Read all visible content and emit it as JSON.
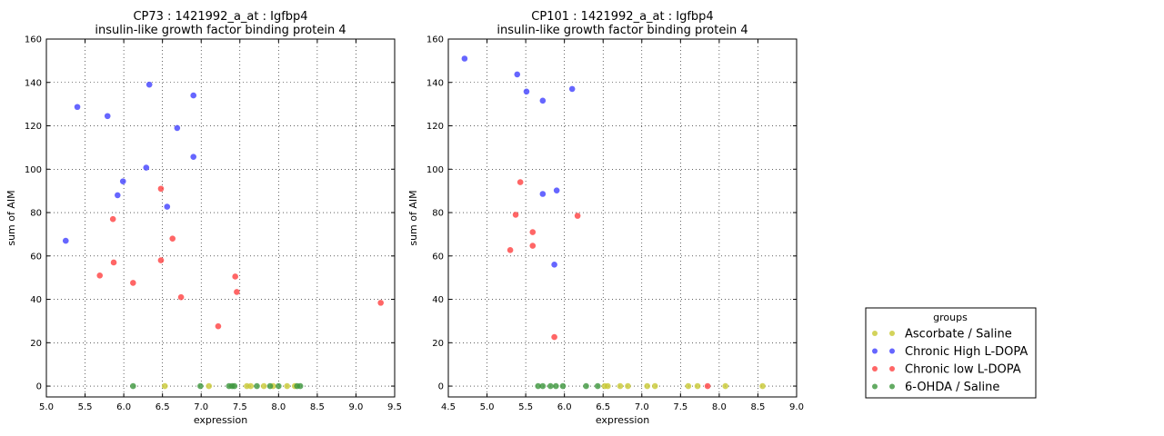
{
  "chart_data": [
    {
      "type": "scatter",
      "title": "CP73 : 1421992_a_at : Igfbp4",
      "subtitle": "insulin-like growth factor binding protein 4",
      "xlabel": "expression",
      "ylabel": "sum of AIM",
      "xlim": [
        5.0,
        9.5
      ],
      "ylim": [
        -5,
        160
      ],
      "xticks": [
        "5.0",
        "5.5",
        "6.0",
        "6.5",
        "7.0",
        "7.5",
        "8.0",
        "8.5",
        "9.0",
        "9.5"
      ],
      "yticks": [
        "0",
        "20",
        "40",
        "60",
        "80",
        "100",
        "120",
        "140",
        "160"
      ],
      "grid": true,
      "series": [
        {
          "name": "Ascorbate / Saline",
          "color": "#c8c832",
          "points": [
            [
              6.53,
              0
            ],
            [
              7.1,
              0
            ],
            [
              7.59,
              0
            ],
            [
              7.64,
              0
            ],
            [
              7.81,
              0
            ],
            [
              7.93,
              0
            ],
            [
              8.11,
              0
            ],
            [
              8.21,
              0
            ]
          ]
        },
        {
          "name": "Chronic High L-DOPA",
          "color": "#4040ff",
          "points": [
            [
              5.4,
              128.7
            ],
            [
              5.79,
              124.5
            ],
            [
              6.33,
              139
            ],
            [
              6.9,
              134
            ],
            [
              6.69,
              119
            ],
            [
              6.29,
              100.7
            ],
            [
              5.99,
              94.4
            ],
            [
              5.92,
              88
            ],
            [
              6.56,
              82.7
            ],
            [
              6.9,
              105.7
            ],
            [
              5.25,
              67
            ]
          ]
        },
        {
          "name": "Chronic low L-DOPA",
          "color": "#ff4040",
          "points": [
            [
              6.48,
              91
            ],
            [
              5.86,
              77
            ],
            [
              6.63,
              68
            ],
            [
              5.69,
              51
            ],
            [
              5.87,
              57
            ],
            [
              6.48,
              58
            ],
            [
              6.12,
              47.6
            ],
            [
              6.74,
              41
            ],
            [
              7.44,
              50.5
            ],
            [
              7.46,
              43.4
            ],
            [
              7.22,
              27.6
            ],
            [
              9.32,
              38.4
            ]
          ]
        },
        {
          "name": "6-OHDA / Saline",
          "color": "#3c963c",
          "points": [
            [
              6.12,
              0
            ],
            [
              6.99,
              0
            ],
            [
              7.36,
              0
            ],
            [
              7.4,
              0
            ],
            [
              7.43,
              0
            ],
            [
              7.72,
              0
            ],
            [
              7.89,
              0
            ],
            [
              8.0,
              0
            ],
            [
              8.24,
              0
            ],
            [
              8.28,
              0
            ]
          ]
        }
      ]
    },
    {
      "type": "scatter",
      "title": "CP101 : 1421992_a_at : Igfbp4",
      "subtitle": "insulin-like growth factor binding protein 4",
      "xlabel": "expression",
      "ylabel": "sum of AIM",
      "xlim": [
        4.5,
        9.0
      ],
      "ylim": [
        -5,
        160
      ],
      "xticks": [
        "4.5",
        "5.0",
        "5.5",
        "6.0",
        "6.5",
        "7.0",
        "7.5",
        "8.0",
        "8.5",
        "9.0"
      ],
      "yticks": [
        "0",
        "20",
        "40",
        "60",
        "80",
        "100",
        "120",
        "140",
        "160"
      ],
      "grid": true,
      "series": [
        {
          "name": "Ascorbate / Saline",
          "color": "#c8c832",
          "points": [
            [
              6.52,
              0
            ],
            [
              6.56,
              0
            ],
            [
              6.72,
              0
            ],
            [
              6.82,
              0
            ],
            [
              7.07,
              0
            ],
            [
              7.17,
              0
            ],
            [
              7.6,
              0
            ],
            [
              7.72,
              0
            ],
            [
              8.08,
              0
            ],
            [
              8.56,
              0
            ]
          ]
        },
        {
          "name": "Chronic High L-DOPA",
          "color": "#4040ff",
          "points": [
            [
              4.71,
              151
            ],
            [
              5.39,
              143.7
            ],
            [
              5.51,
              135.8
            ],
            [
              5.72,
              131.6
            ],
            [
              6.1,
              137
            ],
            [
              5.72,
              88.6
            ],
            [
              5.9,
              90.2
            ],
            [
              5.87,
              56
            ]
          ]
        },
        {
          "name": "Chronic low L-DOPA",
          "color": "#ff4040",
          "points": [
            [
              5.43,
              94
            ],
            [
              5.37,
              79
            ],
            [
              6.17,
              78.5
            ],
            [
              5.59,
              71
            ],
            [
              5.59,
              64.7
            ],
            [
              5.3,
              62.7
            ],
            [
              5.87,
              22.6
            ],
            [
              7.85,
              0
            ]
          ]
        },
        {
          "name": "6-OHDA / Saline",
          "color": "#3c963c",
          "points": [
            [
              5.66,
              0
            ],
            [
              5.72,
              0
            ],
            [
              5.82,
              0
            ],
            [
              5.89,
              0
            ],
            [
              5.98,
              0
            ],
            [
              6.28,
              0
            ],
            [
              6.43,
              0
            ]
          ]
        }
      ]
    }
  ],
  "legend": {
    "title": "groups",
    "placement": "bottom-right",
    "entries": [
      "Ascorbate / Saline",
      "Chronic High L-DOPA",
      "Chronic low L-DOPA",
      "6-OHDA / Saline"
    ]
  }
}
